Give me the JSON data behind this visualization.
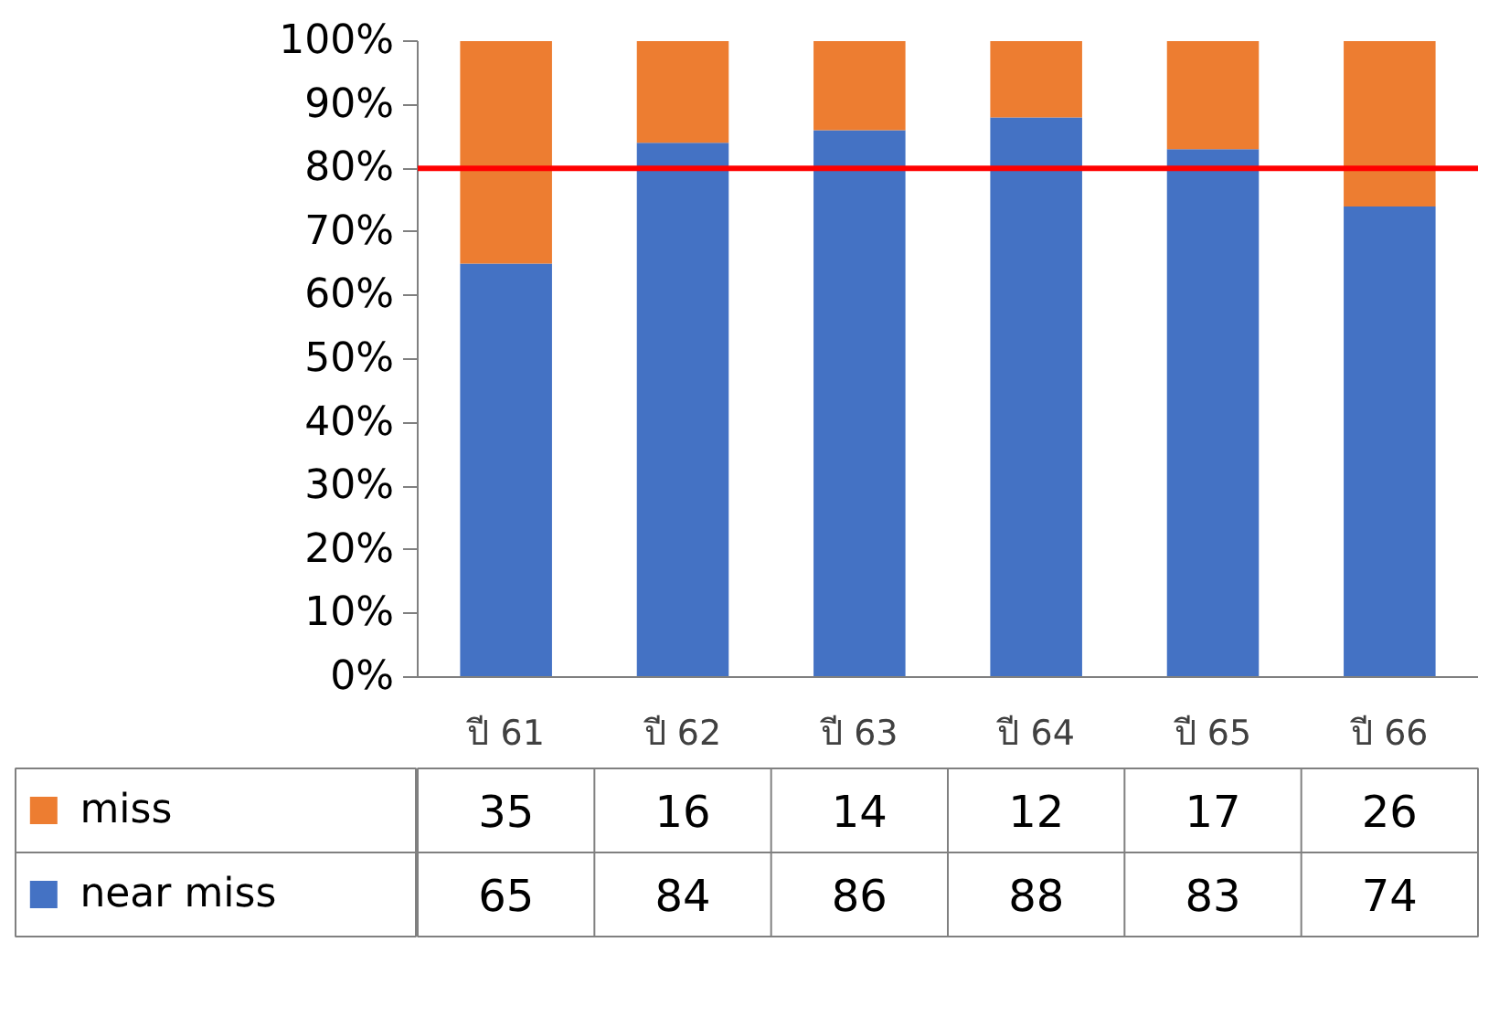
{
  "chart_data": {
    "type": "bar",
    "stacked": true,
    "categories": [
      "ปี 61",
      "ปี 62",
      "ปี 63",
      "ปี 64",
      "ปี 65",
      "ปี 66"
    ],
    "series": [
      {
        "name": "near miss",
        "color": "#4472c4",
        "values": [
          65,
          84,
          86,
          88,
          83,
          74
        ]
      },
      {
        "name": "miss",
        "color": "#ed7d31",
        "values": [
          35,
          16,
          14,
          12,
          17,
          26
        ]
      }
    ],
    "ylim": [
      0,
      100
    ],
    "yticks": [
      {
        "value": 0,
        "label": "0%"
      },
      {
        "value": 10,
        "label": "10%"
      },
      {
        "value": 20,
        "label": "20%"
      },
      {
        "value": 30,
        "label": "30%"
      },
      {
        "value": 40,
        "label": "40%"
      },
      {
        "value": 50,
        "label": "50%"
      },
      {
        "value": 60,
        "label": "60%"
      },
      {
        "value": 70,
        "label": "70%"
      },
      {
        "value": 80,
        "label": "80%"
      },
      {
        "value": 90,
        "label": "90%"
      },
      {
        "value": 100,
        "label": "100%"
      }
    ],
    "ref_lines": [
      {
        "axis": "y",
        "value": 80,
        "color": "#ff0000"
      }
    ],
    "data_labels": true,
    "legend": "bottom",
    "grid": false
  }
}
